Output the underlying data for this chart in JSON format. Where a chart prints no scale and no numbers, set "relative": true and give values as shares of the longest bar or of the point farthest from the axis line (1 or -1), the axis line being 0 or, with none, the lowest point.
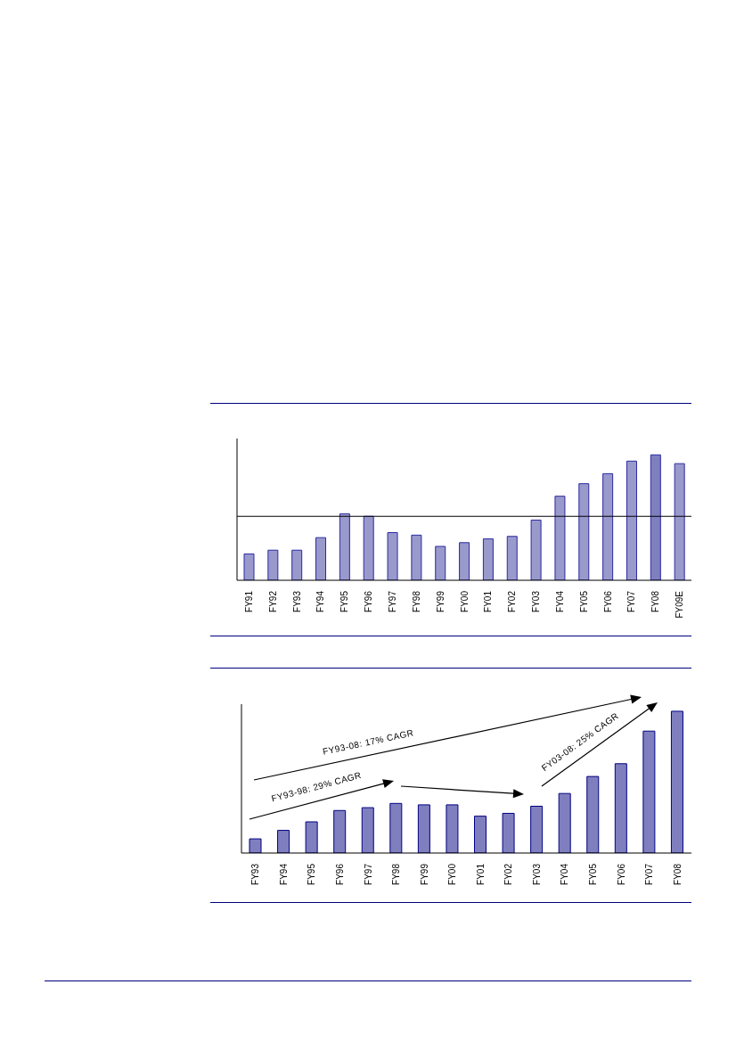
{
  "chart_data": [
    {
      "type": "bar",
      "relative": true,
      "categories": [
        "FY91",
        "FY92",
        "FY93",
        "FY94",
        "FY95",
        "FY96",
        "FY97",
        "FY98",
        "FY99",
        "FY00",
        "FY01",
        "FY02",
        "FY03",
        "FY04",
        "FY05",
        "FY06",
        "FY07",
        "FY08",
        "FY09E"
      ],
      "values": [
        0.21,
        0.24,
        0.24,
        0.34,
        0.53,
        0.51,
        0.38,
        0.36,
        0.27,
        0.3,
        0.33,
        0.35,
        0.48,
        0.67,
        0.77,
        0.85,
        0.95,
        1,
        0.93
      ],
      "colors": [
        "#9999cc",
        "#9999cc",
        "#9999cc",
        "#9999cc",
        "#9999cc",
        "#9999cc",
        "#9999cc",
        "#9999cc",
        "#9999cc",
        "#9999cc",
        "#9999cc",
        "#9999cc",
        "#9999cc",
        "#9999cc",
        "#9999cc",
        "#9999cc",
        "#9999cc",
        "#7f7fbf",
        "#9999cc"
      ],
      "ref_lines": [
        {
          "axis": "y",
          "value": 0.51,
          "color": "#000000"
        }
      ],
      "grid": false,
      "legend": false
    },
    {
      "type": "bar",
      "relative": true,
      "categories": [
        "FY93",
        "FY94",
        "FY95",
        "FY96",
        "FY97",
        "FY98",
        "FY99",
        "FY00",
        "FY01",
        "FY02",
        "FY03",
        "FY04",
        "FY05",
        "FY06",
        "FY07",
        "FY08"
      ],
      "values": [
        0.1,
        0.16,
        0.22,
        0.3,
        0.32,
        0.35,
        0.34,
        0.34,
        0.26,
        0.28,
        0.33,
        0.42,
        0.54,
        0.63,
        0.86,
        1
      ],
      "color": "#7f7fbf",
      "annotations": [
        "FY93-08: 17% CAGR",
        "FY93-98: 29% CAGR",
        "FY03-08: 25% CAGR"
      ],
      "grid": false,
      "legend": false
    }
  ]
}
